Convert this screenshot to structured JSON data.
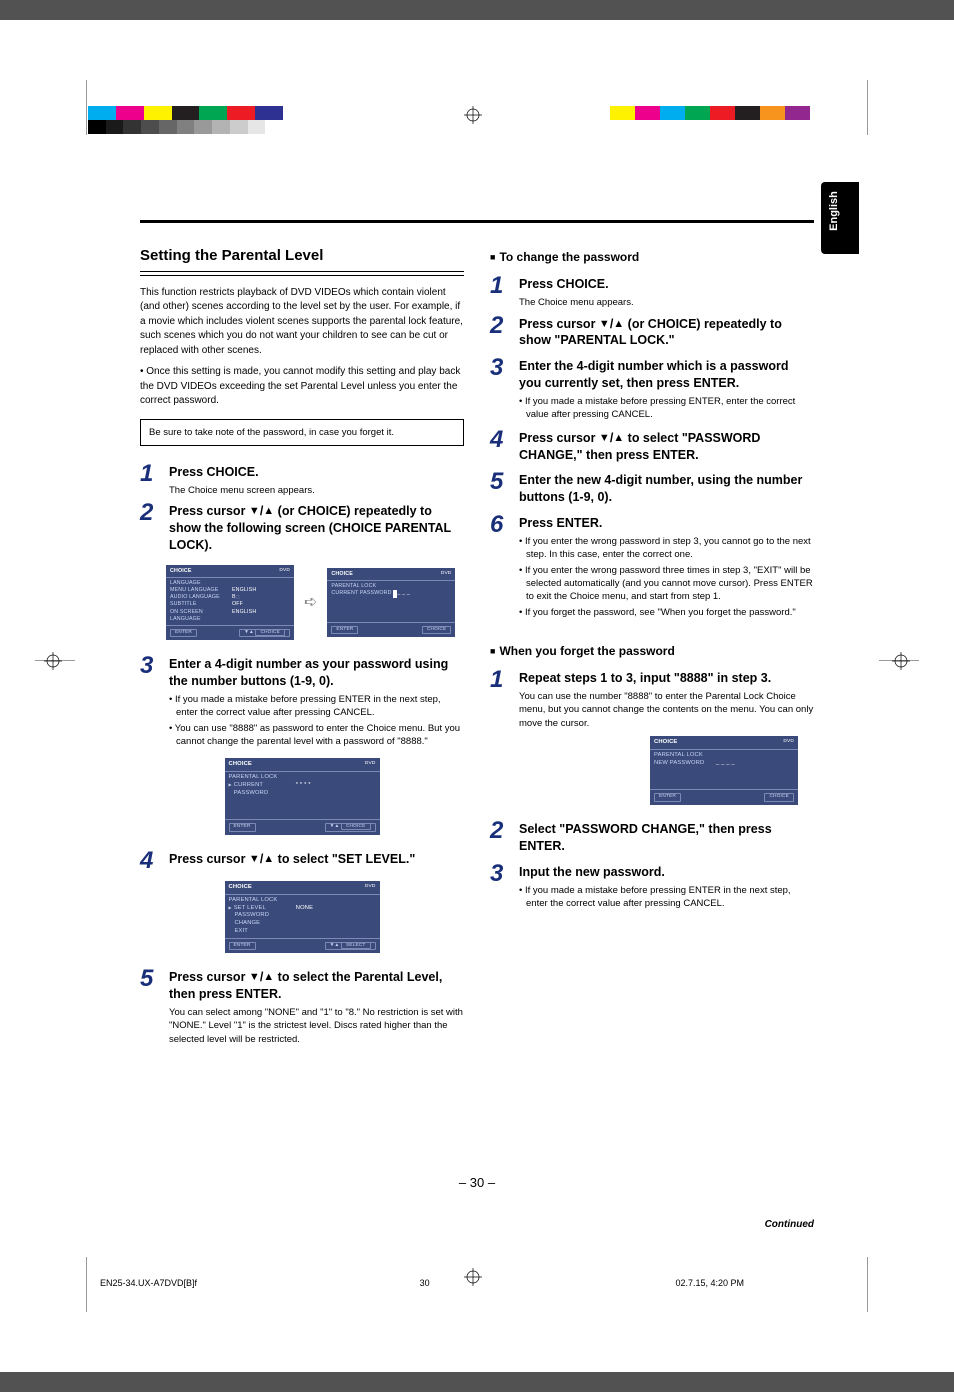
{
  "side_tab": "English",
  "page_number": "– 30 –",
  "bottom_filename": "EN25-34.UX-A7DVD[B]f",
  "bottom_time": "02.7.15, 4:20 PM",
  "bottom_page": "30",
  "continued": "Continued",
  "left": {
    "title": "Setting the Parental Level",
    "intro1": "This function restricts playback of DVD VIDEOs which contain violent (and other) scenes according to the level set by the user. For example, if a movie which includes violent scenes supports the parental lock feature, such scenes which you do not want your children to see can be cut or replaced with other scenes.",
    "intro2": "• Once this setting is made, you cannot modify this setting and play back the DVD VIDEOs exceeding the set Parental Level unless you enter the correct password.",
    "note": "Be sure to take note of the password, in case you forget it.",
    "step1": {
      "head": "Press CHOICE.",
      "sub": "The Choice menu screen appears."
    },
    "step2": {
      "head_a": "Press cursor ",
      "head_b": "/",
      "head_c": " (or CHOICE) repeatedly to show the following screen (CHOICE PARENTAL LOCK)."
    },
    "step3": {
      "head": "Enter a 4-digit number as your password using the number buttons (1-9, 0).",
      "sub_a": "• If you made a mistake before pressing ENTER in the next step, enter the correct value after pressing CANCEL.",
      "sub_b": "• You can use \"8888\" as password to enter the Choice menu. But you cannot change the parental level with a password of \"8888.\""
    },
    "step4": {
      "head_a": "Press cursor ",
      "head_b": "/",
      "head_c": " to select \"SET LEVEL.\""
    },
    "step5": {
      "head_a": "Press cursor ",
      "head_b": "/",
      "head_c": " to select the Parental Level, then press ENTER.",
      "sub": "You can select among \"NONE\" and \"1\" to \"8.\" No restriction is set with \"NONE.\" Level \"1\" is the strictest level. Discs rated higher than the selected level will be restricted."
    }
  },
  "right": {
    "sub1": "To change the password",
    "s1": {
      "head": "Press CHOICE.",
      "sub": "The Choice menu appears."
    },
    "s2": {
      "head_a": "Press cursor ",
      "head_b": "/",
      "head_c": " (or CHOICE) repeatedly to show \"PARENTAL LOCK.\""
    },
    "s3": {
      "head": "Enter the 4-digit number which is a password you currently set, then press ENTER.",
      "sub": "• If you made a mistake before pressing ENTER, enter the correct value after pressing CANCEL."
    },
    "s4": {
      "head_a": "Press cursor ",
      "head_b": "/",
      "head_c": " to select \"PASSWORD CHANGE,\" then press ENTER."
    },
    "s5": {
      "head": "Enter the new 4-digit number, using the number buttons (1-9, 0)."
    },
    "s6": {
      "head": "Press ENTER.",
      "sub_a": "• If you enter the wrong password in step 3, you cannot go to the next step. In this case, enter the correct one.",
      "sub_b": "• If you enter the wrong password three times in step 3, \"EXIT\" will be selected automatically (and you cannot move cursor). Press ENTER to exit the Choice menu, and start from step 1.",
      "sub_c": "• If you forget the password, see \"When you forget the password.\""
    },
    "sub2": "When you forget the password",
    "f1": {
      "head": "Repeat steps 1 to 3, input \"8888\" in step 3.",
      "sub": "You can use the number \"8888\" to enter the Parental Lock Choice menu, but you cannot change the contents on the menu. You can only move the cursor."
    },
    "f2": {
      "head": "Select \"PASSWORD CHANGE,\" then press ENTER."
    },
    "f3": {
      "head": "Input the new password.",
      "sub": "• If you made a mistake before pressing ENTER in the next step, enter the correct value after pressing CANCEL."
    }
  },
  "ui": {
    "choice_title": "CHOICE",
    "parental_title": "PARENTAL LOCK",
    "row_lang": "LANGUAGE",
    "row_menu": "MENU LANGUAGE",
    "row_audio": "AUDIO LANGUAGE",
    "row_sub": "SUBTITLE",
    "row_screen": "ON SCREEN LANGUAGE",
    "val_english": "ENGLISH",
    "val_ba": "B",
    "val_off": "OFF",
    "row_current": "CURRENT PASSWORD",
    "row_setlevel": "SET LEVEL",
    "row_pwchange": "PASSWORD CHANGE",
    "row_exit": "EXIT",
    "val_none": "NONE",
    "row_newpw": "NEW PASSWORD",
    "footer_enter": "ENTER",
    "footer_choice": "CHOICE",
    "footer_select": "SELECT"
  },
  "colors": {
    "step_num": "#1a2f7a",
    "ui_bg": "#3a4a7a",
    "ui_fg": "#c5d5f5",
    "color_bar": [
      "#00aeef",
      "#ec008c",
      "#fff200",
      "#231f20",
      "#00a651",
      "#ed1c24",
      "#2e3192"
    ],
    "right_bar": [
      "#fff200",
      "#ec008c",
      "#00aeef",
      "#00a651",
      "#ed1c24",
      "#231f20",
      "#f7941d",
      "#92278f"
    ],
    "gray_grad": [
      "#000000",
      "#1a1a1a",
      "#333333",
      "#4d4d4d",
      "#666666",
      "#808080",
      "#999999",
      "#b3b3b3",
      "#cccccc",
      "#e6e6e6",
      "#ffffff"
    ]
  }
}
